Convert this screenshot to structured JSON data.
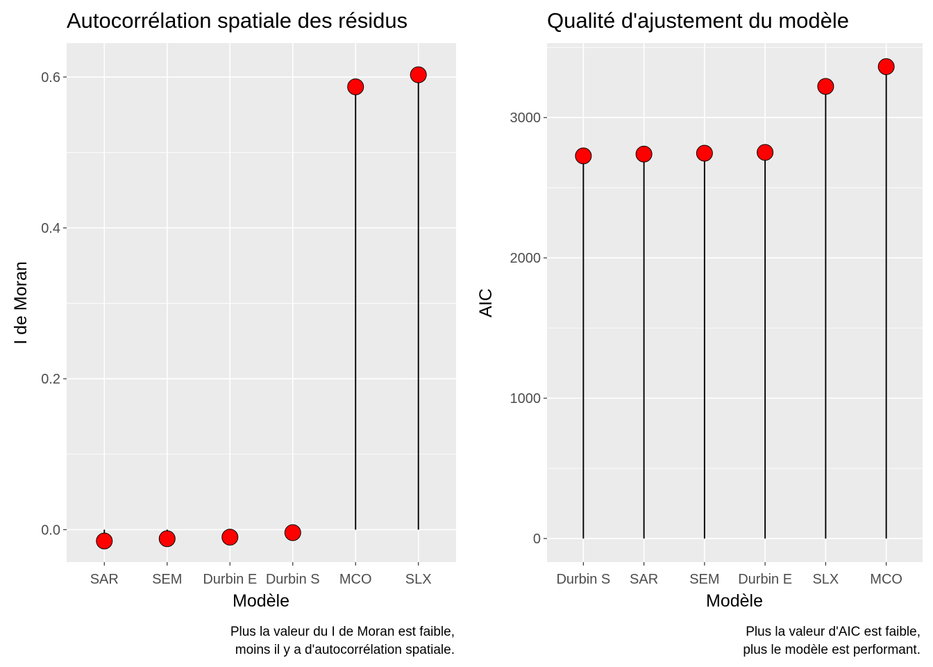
{
  "chart_data": [
    {
      "type": "lollipop",
      "title": "Autocorrélation spatiale des résidus",
      "xlabel": "Modèle",
      "ylabel": "I de Moran",
      "categories": [
        "SAR",
        "SEM",
        "Durbin E",
        "Durbin S",
        "MCO",
        "SLX"
      ],
      "values": [
        -0.015,
        -0.012,
        -0.01,
        -0.004,
        0.587,
        0.603
      ],
      "ylim": [
        -0.043,
        0.645
      ],
      "yticks": [
        0.0,
        0.2,
        0.4,
        0.6
      ],
      "ytick_labels": [
        "0.0",
        "0.2",
        "0.4",
        "0.6"
      ],
      "grid": true,
      "legend": "none",
      "point_color": "#ff0000",
      "caption_lines": [
        "Plus la valeur du I de Moran est faible,",
        "moins il y a d'autocorrélation spatiale."
      ]
    },
    {
      "type": "lollipop",
      "title": "Qualité d'ajustement du modèle",
      "xlabel": "Modèle",
      "ylabel": "AIC",
      "categories": [
        "Durbin S",
        "SAR",
        "SEM",
        "Durbin E",
        "SLX",
        "MCO"
      ],
      "values": [
        2727,
        2740,
        2746,
        2752,
        3222,
        3363
      ],
      "ylim": [
        -168,
        3531
      ],
      "yticks": [
        0,
        1000,
        2000,
        3000
      ],
      "ytick_labels": [
        "0",
        "1000",
        "2000",
        "3000"
      ],
      "grid": true,
      "legend": "none",
      "point_color": "#ff0000",
      "caption_lines": [
        "Plus la valeur d'AIC est faible,",
        "plus le modèle est performant."
      ]
    }
  ]
}
